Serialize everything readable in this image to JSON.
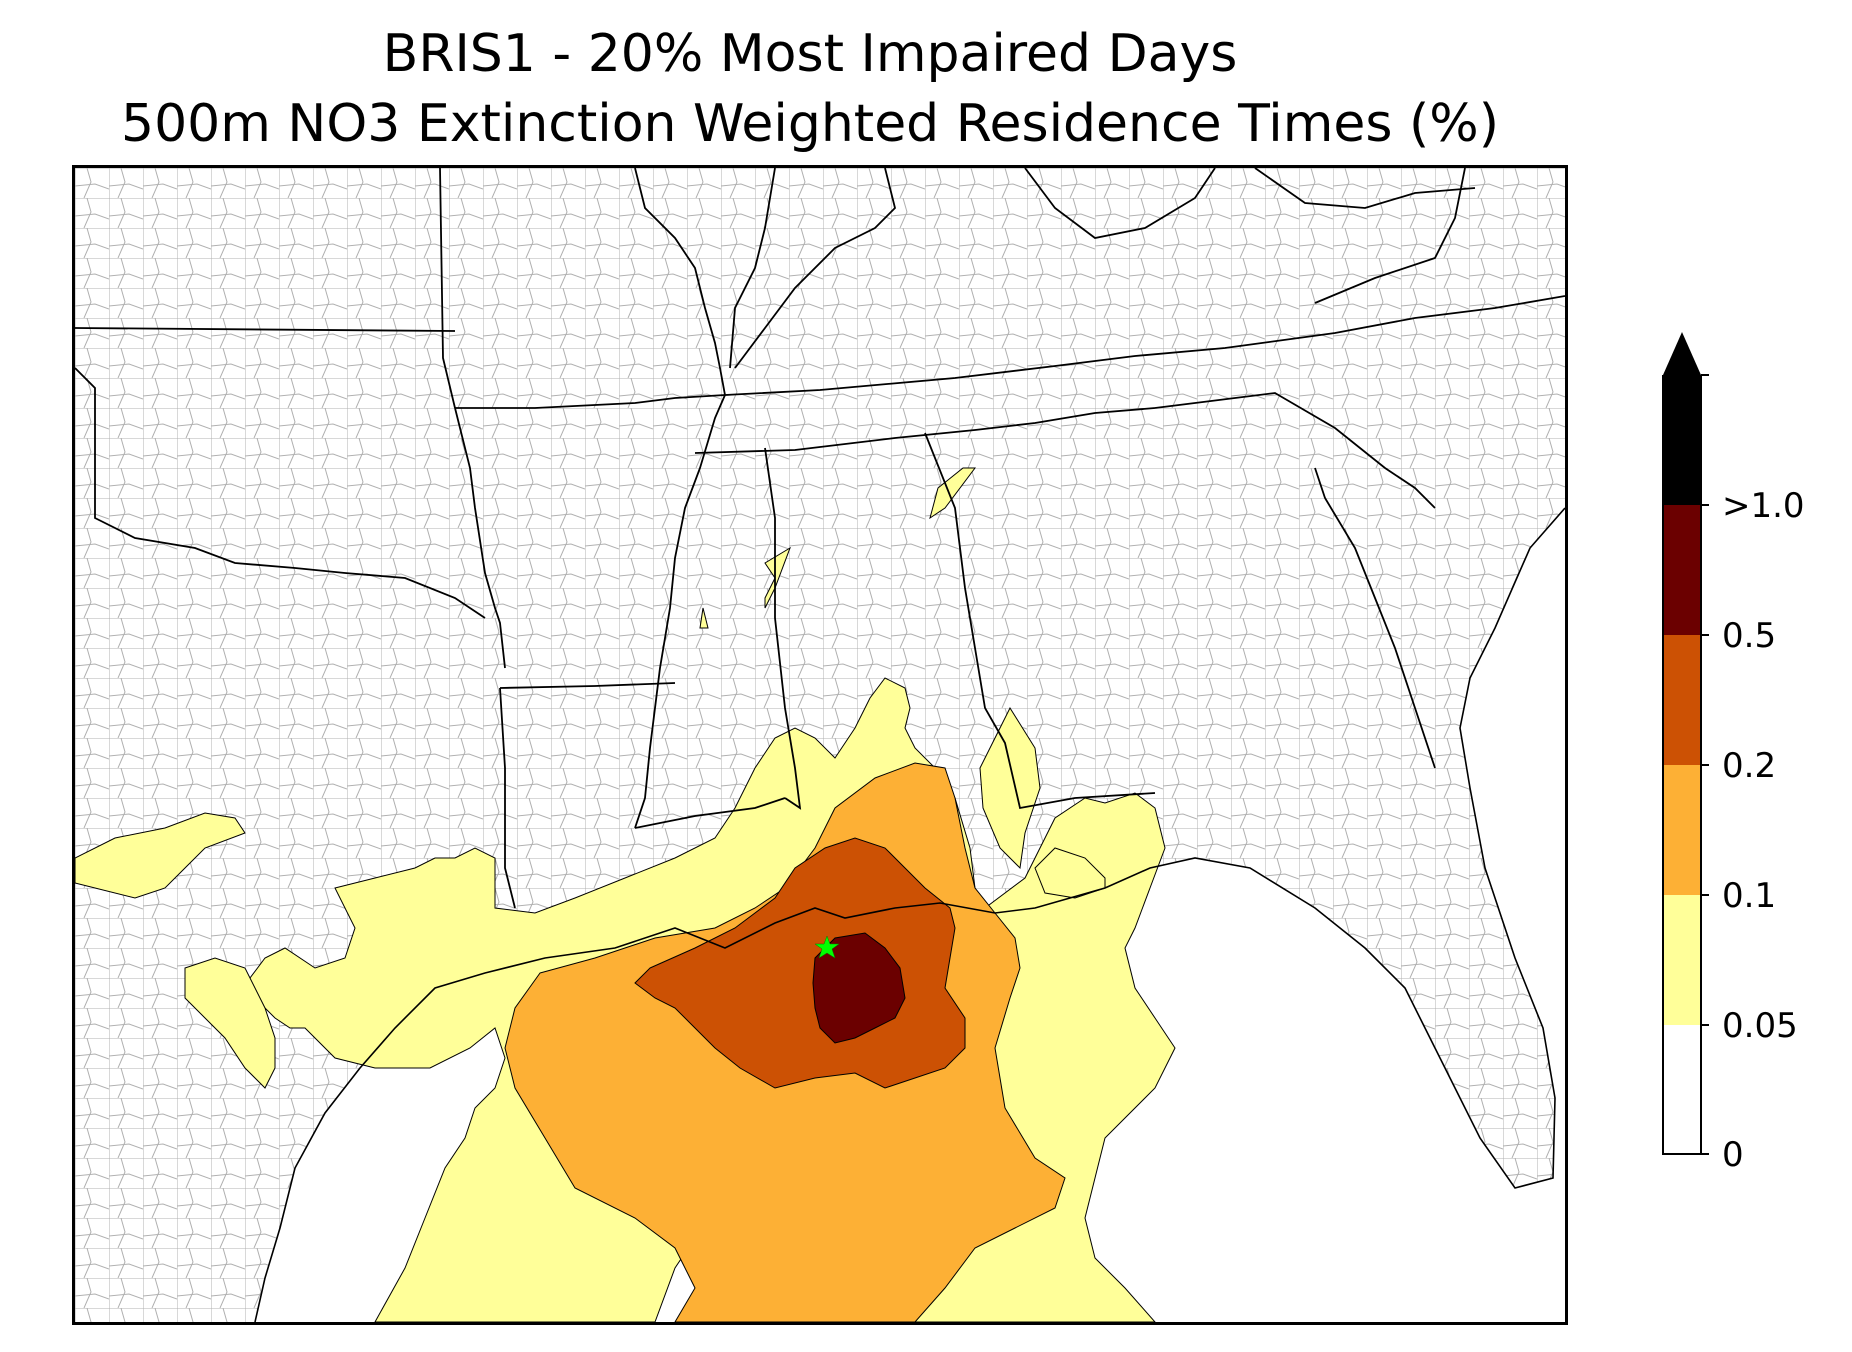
{
  "title": {
    "line1": "BRIS1 - 20% Most Impaired Days",
    "line2": "500m NO3 Extinction Weighted Residence Times (%)"
  },
  "map": {
    "site_marker": "green-star-icon",
    "site_marker_color": "#00ff00",
    "state_line_color": "#000000",
    "county_line_color": "#a6a6a6"
  },
  "colorbar": {
    "extend": "max",
    "levels": [
      {
        "value": "0",
        "color": "#ffffff"
      },
      {
        "value": "0.05",
        "color": "#ffff99"
      },
      {
        "value": "0.1",
        "color": "#fdb035"
      },
      {
        "value": "0.2",
        "color": "#cc5104"
      },
      {
        "value": "0.5",
        "color": "#6b0000"
      },
      {
        "value": ">1.0",
        "color": "#000000"
      }
    ],
    "tick_labels": [
      "0",
      "0.05",
      "0.1",
      "0.2",
      "0.5",
      ">1.0"
    ]
  }
}
